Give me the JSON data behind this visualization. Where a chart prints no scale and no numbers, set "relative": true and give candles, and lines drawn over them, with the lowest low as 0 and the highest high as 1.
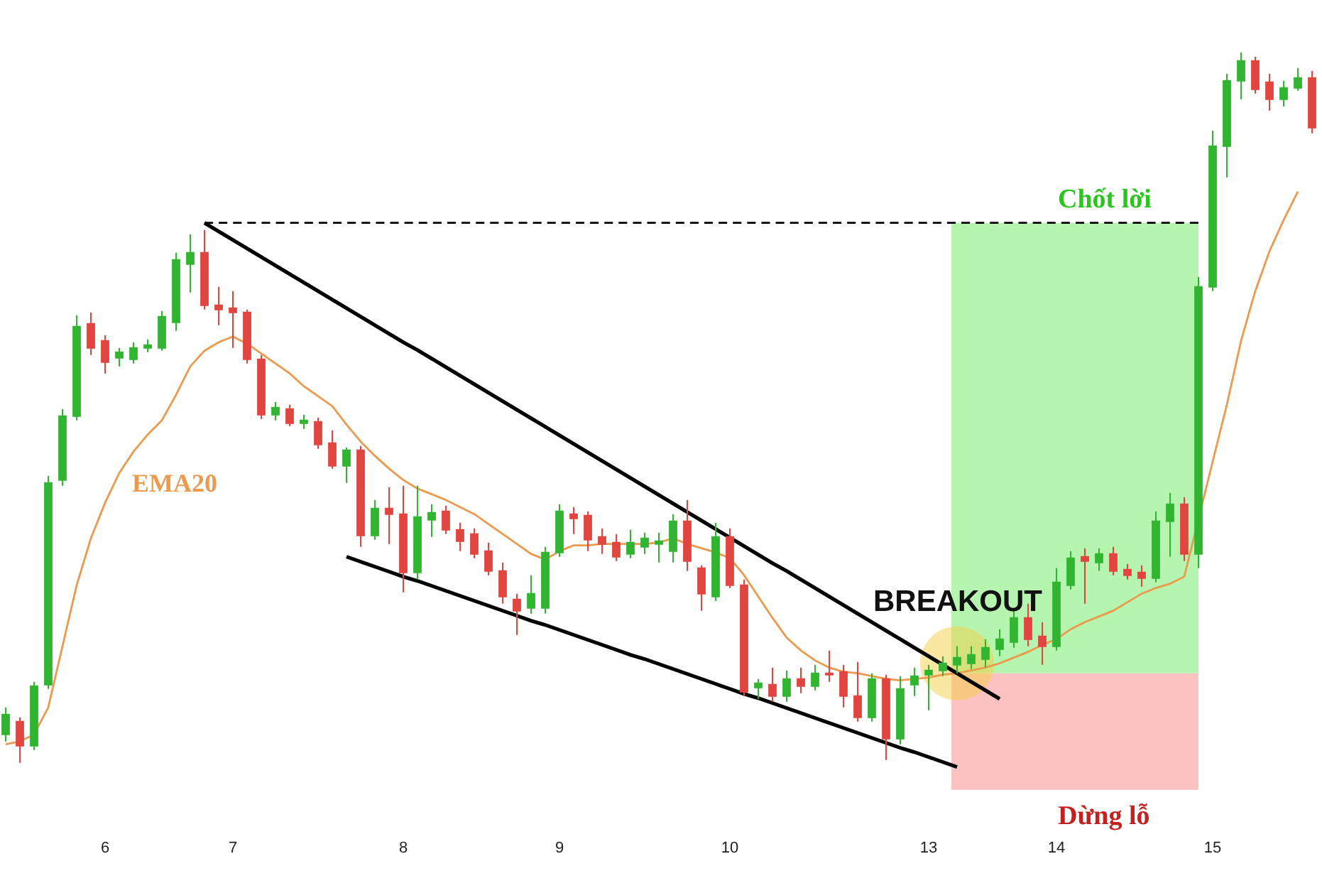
{
  "chart_data": {
    "type": "candlestick",
    "relative": true,
    "tick_labels": "x",
    "categories": [
      null,
      null,
      null,
      null,
      null,
      null,
      null,
      "6",
      null,
      null,
      null,
      null,
      null,
      null,
      null,
      null,
      "7",
      null,
      null,
      null,
      null,
      null,
      null,
      null,
      null,
      null,
      null,
      null,
      "8",
      null,
      null,
      null,
      null,
      null,
      null,
      null,
      null,
      null,
      null,
      "9",
      null,
      null,
      null,
      null,
      null,
      null,
      null,
      null,
      null,
      null,
      null,
      "10",
      null,
      null,
      null,
      null,
      null,
      null,
      null,
      null,
      null,
      null,
      null,
      null,
      null,
      "13",
      null,
      null,
      null,
      null,
      null,
      null,
      null,
      null,
      "14",
      null,
      null,
      null,
      null,
      null,
      null,
      null,
      null,
      null,
      null,
      "15",
      null,
      null,
      null,
      null,
      null,
      null,
      null
    ],
    "ohlc": [
      [
        0.04,
        0.078,
        0.03,
        0.068
      ],
      [
        0.058,
        0.064,
        0,
        0.024
      ],
      [
        0.024,
        0.114,
        0.018,
        0.108
      ],
      [
        0.11,
        0.404,
        0.104,
        0.394
      ],
      [
        0.398,
        0.498,
        0.39,
        0.488
      ],
      [
        0.488,
        0.63,
        0.482,
        0.614
      ],
      [
        0.618,
        0.634,
        0.574,
        0.584
      ],
      [
        0.594,
        0.602,
        0.548,
        0.564
      ],
      [
        0.57,
        0.584,
        0.558,
        0.578
      ],
      [
        0.568,
        0.592,
        0.562,
        0.584
      ],
      [
        0.584,
        0.596,
        0.578,
        0.588
      ],
      [
        0.584,
        0.636,
        0.58,
        0.628
      ],
      [
        0.62,
        0.718,
        0.608,
        0.708
      ],
      [
        0.702,
        0.744,
        0.662,
        0.718
      ],
      [
        0.718,
        0.75,
        0.638,
        0.644
      ],
      [
        0.644,
        0.67,
        0.616,
        0.638
      ],
      [
        0.64,
        0.664,
        0.584,
        0.634
      ],
      [
        0.634,
        0.638,
        0.562,
        0.568
      ],
      [
        0.568,
        0.574,
        0.484,
        0.49
      ],
      [
        0.49,
        0.508,
        0.482,
        0.5
      ],
      [
        0.498,
        0.504,
        0.474,
        0.478
      ],
      [
        0.478,
        0.49,
        0.47,
        0.482
      ],
      [
        0.48,
        0.486,
        0.442,
        0.448
      ],
      [
        0.45,
        0.468,
        0.414,
        0.418
      ],
      [
        0.418,
        0.444,
        0.394,
        0.44
      ],
      [
        0.44,
        0.446,
        0.304,
        0.32
      ],
      [
        0.32,
        0.37,
        0.314,
        0.358
      ],
      [
        0.358,
        0.388,
        0.308,
        0.35
      ],
      [
        0.35,
        0.39,
        0.24,
        0.268
      ],
      [
        0.268,
        0.39,
        0.258,
        0.346
      ],
      [
        0.342,
        0.364,
        0.318,
        0.352
      ],
      [
        0.354,
        0.362,
        0.322,
        0.328
      ],
      [
        0.328,
        0.338,
        0.298,
        0.312
      ],
      [
        0.322,
        0.33,
        0.288,
        0.294
      ],
      [
        0.298,
        0.31,
        0.264,
        0.27
      ],
      [
        0.27,
        0.282,
        0.224,
        0.234
      ],
      [
        0.23,
        0.238,
        0.18,
        0.214
      ],
      [
        0.218,
        0.264,
        0.21,
        0.238
      ],
      [
        0.218,
        0.304,
        0.21,
        0.296
      ],
      [
        0.296,
        0.364,
        0.29,
        0.354
      ],
      [
        0.35,
        0.36,
        0.322,
        0.344
      ],
      [
        0.348,
        0.354,
        0.298,
        0.314
      ],
      [
        0.318,
        0.33,
        0.294,
        0.308
      ],
      [
        0.31,
        0.322,
        0.284,
        0.29
      ],
      [
        0.294,
        0.328,
        0.288,
        0.31
      ],
      [
        0.304,
        0.324,
        0.294,
        0.316
      ],
      [
        0.308,
        0.324,
        0.282,
        0.312
      ],
      [
        0.298,
        0.35,
        0.282,
        0.34
      ],
      [
        0.34,
        0.37,
        0.27,
        0.284
      ],
      [
        0.274,
        0.278,
        0.214,
        0.238
      ],
      [
        0.234,
        0.338,
        0.228,
        0.318
      ],
      [
        0.318,
        0.33,
        0.246,
        0.25
      ],
      [
        0.25,
        0.258,
        0.094,
        0.1
      ],
      [
        0.106,
        0.118,
        0.09,
        0.112
      ],
      [
        0.11,
        0.134,
        0.086,
        0.094
      ],
      [
        0.094,
        0.13,
        0.086,
        0.118
      ],
      [
        0.118,
        0.134,
        0.098,
        0.108
      ],
      [
        0.108,
        0.138,
        0.102,
        0.126
      ],
      [
        0.126,
        0.158,
        0.114,
        0.124
      ],
      [
        0.128,
        0.138,
        0.078,
        0.094
      ],
      [
        0.094,
        0.142,
        0.058,
        0.064
      ],
      [
        0.064,
        0.126,
        0.058,
        0.118
      ],
      [
        0.118,
        0.124,
        0.004,
        0.034
      ],
      [
        0.034,
        0.122,
        0.026,
        0.104
      ],
      [
        0.11,
        0.134,
        0.094,
        0.122
      ],
      [
        0.124,
        0.138,
        0.074,
        0.13
      ],
      [
        0.13,
        0.15,
        0.122,
        0.14
      ],
      [
        0.138,
        0.164,
        0.126,
        0.148
      ],
      [
        0.14,
        0.164,
        0.132,
        0.152
      ],
      [
        0.146,
        0.174,
        0.134,
        0.162
      ],
      [
        0.16,
        0.188,
        0.15,
        0.174
      ],
      [
        0.17,
        0.218,
        0.162,
        0.204
      ],
      [
        0.204,
        0.224,
        0.164,
        0.174
      ],
      [
        0.178,
        0.198,
        0.138,
        0.164
      ],
      [
        0.164,
        0.274,
        0.158,
        0.254
      ],
      [
        0.25,
        0.298,
        0.244,
        0.288
      ],
      [
        0.29,
        0.302,
        0.224,
        0.284
      ],
      [
        0.282,
        0.302,
        0.27,
        0.294
      ],
      [
        0.294,
        0.304,
        0.264,
        0.27
      ],
      [
        0.272,
        0.28,
        0.258,
        0.264
      ],
      [
        0.268,
        0.278,
        0.248,
        0.26
      ],
      [
        0.26,
        0.354,
        0.254,
        0.34
      ],
      [
        0.34,
        0.38,
        0.29,
        0.364
      ],
      [
        0.364,
        0.374,
        0.284,
        0.294
      ],
      [
        0.294,
        0.684,
        0.274,
        0.67
      ],
      [
        0.67,
        0.89,
        0.664,
        0.868
      ],
      [
        0.868,
        0.97,
        0.824,
        0.96
      ],
      [
        0.96,
        1,
        0.934,
        0.988
      ],
      [
        0.988,
        0.994,
        0.942,
        0.948
      ],
      [
        0.958,
        0.97,
        0.918,
        0.934
      ],
      [
        0.934,
        0.96,
        0.924,
        0.95
      ],
      [
        0.95,
        0.978,
        0.946,
        0.964
      ],
      [
        0.964,
        0.974,
        0.886,
        0.894
      ]
    ],
    "colors": [
      "#31b531",
      "#e2453f",
      "#31b531",
      "#31b531",
      "#31b531",
      "#31b531",
      "#e2453f",
      "#e2453f",
      "#31b531",
      "#31b531",
      "#31b531",
      "#31b531",
      "#31b531",
      "#31b531",
      "#e2453f",
      "#e2453f",
      "#e2453f",
      "#e2453f",
      "#e2453f",
      "#31b531",
      "#e2453f",
      "#31b531",
      "#e2453f",
      "#e2453f",
      "#31b531",
      "#e2453f",
      "#31b531",
      "#e2453f",
      "#e2453f",
      "#31b531",
      "#31b531",
      "#e2453f",
      "#e2453f",
      "#e2453f",
      "#e2453f",
      "#e2453f",
      "#e2453f",
      "#31b531",
      "#31b531",
      "#31b531",
      "#e2453f",
      "#e2453f",
      "#e2453f",
      "#e2453f",
      "#31b531",
      "#31b531",
      "#31b531",
      "#31b531",
      "#e2453f",
      "#e2453f",
      "#31b531",
      "#e2453f",
      "#e2453f",
      "#31b531",
      "#e2453f",
      "#31b531",
      "#e2453f",
      "#31b531",
      "#e2453f",
      "#e2453f",
      "#e2453f",
      "#31b531",
      "#e2453f",
      "#31b531",
      "#31b531",
      "#31b531",
      "#31b531",
      "#31b531",
      "#31b531",
      "#31b531",
      "#31b531",
      "#31b531",
      "#e2453f",
      "#e2453f",
      "#31b531",
      "#31b531",
      "#e2453f",
      "#31b531",
      "#e2453f",
      "#e2453f",
      "#e2453f",
      "#31b531",
      "#31b531",
      "#e2453f",
      "#31b531",
      "#31b531",
      "#31b531",
      "#31b531",
      "#e2453f",
      "#e2453f",
      "#31b531",
      "#31b531",
      "#e2453f"
    ],
    "bands": [
      {
        "axis": "y",
        "from": 0.126,
        "to": 0.76,
        "label": "Chốt lời",
        "color": "#b5f5b0"
      },
      {
        "axis": "y",
        "from": -0.038,
        "to": 0.126,
        "label": "Dừng lỗ",
        "color": "#fcc2c2"
      }
    ],
    "series": [
      {
        "type": "scatter",
        "color": "#f5cf45",
        "values": [
          null,
          null,
          null,
          null,
          null,
          null,
          null,
          null,
          null,
          null,
          null,
          null,
          null,
          null,
          null,
          null,
          null,
          null,
          null,
          null,
          null,
          null,
          null,
          null,
          null,
          null,
          null,
          null,
          null,
          null,
          null,
          null,
          null,
          null,
          null,
          null,
          null,
          null,
          null,
          null,
          null,
          null,
          null,
          null,
          null,
          null,
          null,
          null,
          null,
          null,
          null,
          null,
          null,
          null,
          null,
          null,
          null,
          null,
          null,
          null,
          null,
          null,
          null,
          null,
          null,
          null,
          null,
          0.14,
          null,
          null,
          null,
          null,
          null,
          null,
          null,
          null,
          null,
          null,
          null,
          null,
          null,
          null,
          null,
          null,
          null,
          null,
          null,
          null,
          null,
          null,
          null,
          null,
          null
        ]
      },
      {
        "name": "EMA20",
        "type": "line",
        "color": "#eb9a4e",
        "values": [
          0.026,
          0.03,
          0.04,
          0.078,
          0.164,
          0.25,
          0.316,
          0.366,
          0.408,
          0.438,
          0.462,
          0.482,
          0.518,
          0.558,
          0.58,
          0.592,
          0.6,
          0.59,
          0.576,
          0.562,
          0.548,
          0.53,
          0.516,
          0.502,
          0.476,
          0.452,
          0.432,
          0.414,
          0.398,
          0.386,
          0.378,
          0.37,
          0.36,
          0.35,
          0.336,
          0.322,
          0.308,
          0.294,
          0.286,
          0.298,
          0.306,
          0.306,
          0.308,
          0.308,
          0.308,
          0.308,
          0.31,
          0.316,
          0.308,
          0.302,
          0.296,
          0.288,
          0.264,
          0.234,
          0.204,
          0.176,
          0.158,
          0.144,
          0.134,
          0.128,
          0.126,
          0.122,
          0.118,
          0.116,
          0.118,
          0.12,
          0.124,
          0.126,
          0.13,
          0.134,
          0.14,
          0.148,
          0.156,
          0.166,
          0.174,
          0.188,
          0.198,
          0.206,
          0.214,
          0.226,
          0.238,
          0.246,
          0.252,
          0.262,
          null,
          0.424,
          0.504,
          0.594,
          0.664,
          0.72,
          0.764,
          0.804,
          null
        ]
      },
      {
        "type": "line",
        "color": "#000000",
        "values": [
          null,
          null,
          null,
          null,
          null,
          null,
          null,
          null,
          null,
          null,
          null,
          null,
          null,
          null,
          0.76,
          0.748,
          0.736,
          0.724,
          0.712,
          0.7,
          0.688,
          0.676,
          0.664,
          0.652,
          0.64,
          0.628,
          0.616,
          0.604,
          0.592,
          0.581,
          0.569,
          0.557,
          0.545,
          0.533,
          0.521,
          0.509,
          0.497,
          0.485,
          0.473,
          0.461,
          0.449,
          0.437,
          0.425,
          0.413,
          0.401,
          0.389,
          0.377,
          0.365,
          0.353,
          0.341,
          0.329,
          0.317,
          0.305,
          0.293,
          0.281,
          0.27,
          0.258,
          0.246,
          0.234,
          0.222,
          0.21,
          0.198,
          0.186,
          0.174,
          0.162,
          0.15,
          0.138,
          0.126,
          0.114,
          0.102,
          0.09,
          null,
          null,
          null,
          null,
          null,
          null,
          null,
          null,
          null,
          null,
          null,
          null,
          null,
          null,
          null,
          null,
          null,
          null,
          null,
          null,
          null,
          null
        ]
      },
      {
        "type": "line",
        "color": "#000000",
        "values": [
          null,
          null,
          null,
          null,
          null,
          null,
          null,
          null,
          null,
          null,
          null,
          null,
          null,
          null,
          null,
          null,
          null,
          null,
          null,
          null,
          null,
          null,
          null,
          null,
          0.29,
          0.283,
          0.276,
          0.269,
          0.262,
          0.256,
          0.249,
          0.242,
          0.235,
          0.228,
          0.221,
          0.214,
          0.207,
          0.2,
          0.194,
          0.187,
          0.18,
          0.173,
          0.166,
          0.159,
          0.152,
          0.146,
          0.139,
          0.132,
          0.125,
          0.118,
          0.111,
          0.104,
          0.097,
          0.091,
          0.084,
          0.077,
          0.07,
          0.063,
          0.056,
          0.049,
          0.042,
          0.035,
          0.028,
          0.021,
          0.015,
          0.008,
          0.001,
          -0.006,
          null,
          null,
          null,
          null,
          null,
          null,
          null,
          null,
          null,
          null,
          null,
          null,
          null,
          null,
          null,
          null,
          null,
          null,
          null,
          null,
          null,
          null,
          null,
          null,
          null
        ]
      },
      {
        "type": "line",
        "color": "#000000",
        "line_style": "dashed",
        "values": [
          null,
          null,
          null,
          null,
          null,
          null,
          null,
          null,
          null,
          null,
          null,
          null,
          null,
          null,
          0.76,
          0.76,
          0.76,
          0.76,
          0.76,
          0.76,
          0.76,
          0.76,
          0.76,
          0.76,
          0.76,
          0.76,
          0.76,
          0.76,
          0.76,
          0.76,
          0.76,
          0.76,
          0.76,
          0.76,
          0.76,
          0.76,
          0.76,
          0.76,
          0.76,
          0.76,
          0.76,
          0.76,
          0.76,
          0.76,
          0.76,
          0.76,
          0.76,
          0.76,
          0.76,
          0.76,
          0.76,
          0.76,
          0.76,
          0.76,
          0.76,
          0.76,
          0.76,
          0.76,
          0.76,
          0.76,
          0.76,
          0.76,
          0.76,
          0.76,
          0.76,
          0.76,
          0.76,
          0.76,
          0.76,
          0.76,
          0.76,
          0.76,
          0.76,
          0.76,
          0.76,
          0.76,
          0.76,
          0.76,
          0.76,
          0.76,
          0.76,
          0.76,
          0.76,
          0.76,
          0.76,
          null,
          null,
          null,
          null,
          null,
          null,
          null,
          null
        ]
      }
    ],
    "annotations": [
      "BREAKOUT"
    ]
  }
}
